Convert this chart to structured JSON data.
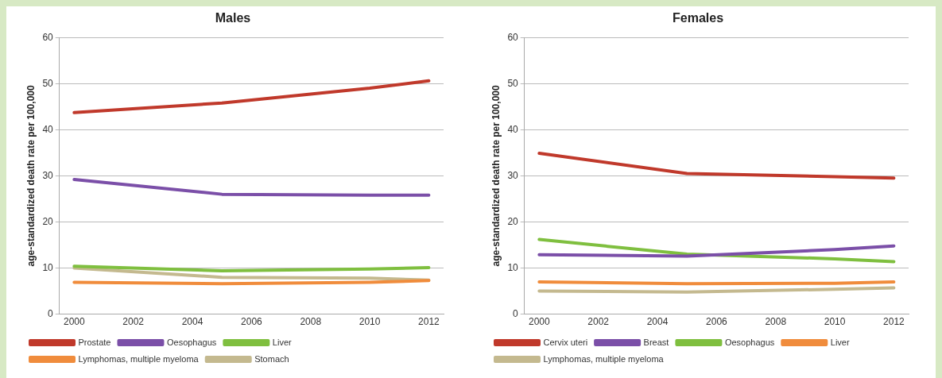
{
  "chart_data": [
    {
      "type": "line",
      "title": "Males",
      "ylabel": "age-standardized death rate per 100,000",
      "x": [
        2000,
        2005,
        2010,
        2012
      ],
      "series": [
        {
          "name": "Prostate",
          "color": "#c0392b",
          "values": [
            43.7,
            45.8,
            49,
            50.6
          ]
        },
        {
          "name": "Oesophagus",
          "color": "#7b4fa8",
          "values": [
            29.2,
            26,
            25.8,
            25.8
          ]
        },
        {
          "name": "Liver",
          "color": "#7fbf3f",
          "values": [
            10.4,
            9.4,
            9.8,
            10.1
          ]
        },
        {
          "name": "Lymphomas, multiple myeloma",
          "color": "#f08c3c",
          "values": [
            6.9,
            6.6,
            6.9,
            7.3
          ]
        },
        {
          "name": "Stomach",
          "color": "#c4b98f",
          "values": [
            10,
            8,
            7.8,
            7.4
          ]
        }
      ],
      "xlim": [
        1999.5,
        2012.5
      ],
      "xticks": [
        2000,
        2002,
        2004,
        2006,
        2008,
        2010,
        2012
      ],
      "ylim": [
        0,
        60
      ],
      "yticks": [
        0,
        10,
        20,
        30,
        40,
        50,
        60
      ],
      "grid": "y",
      "legend": "bottom",
      "marker": "none",
      "line_style": "solid"
    },
    {
      "type": "line",
      "title": "Females",
      "ylabel": "age-standardized death rate per 100,000",
      "x": [
        2000,
        2005,
        2010,
        2012
      ],
      "series": [
        {
          "name": "Cervix uteri",
          "color": "#c0392b",
          "values": [
            34.9,
            30.5,
            29.8,
            29.5
          ]
        },
        {
          "name": "Breast",
          "color": "#7b4fa8",
          "values": [
            12.9,
            12.6,
            14,
            14.8
          ]
        },
        {
          "name": "Oesophagus",
          "color": "#7fbf3f",
          "values": [
            16.2,
            13,
            12,
            11.4
          ]
        },
        {
          "name": "Liver",
          "color": "#f08c3c",
          "values": [
            7,
            6.6,
            6.7,
            7
          ]
        },
        {
          "name": "Lymphomas, multiple myeloma",
          "color": "#c4b98f",
          "values": [
            5,
            4.8,
            5.4,
            5.7
          ]
        }
      ],
      "xlim": [
        1999.5,
        2012.5
      ],
      "xticks": [
        2000,
        2002,
        2004,
        2006,
        2008,
        2010,
        2012
      ],
      "ylim": [
        0,
        60
      ],
      "yticks": [
        0,
        10,
        20,
        30,
        40,
        50,
        60
      ],
      "grid": "y",
      "legend": "bottom",
      "marker": "none",
      "line_style": "solid"
    }
  ]
}
